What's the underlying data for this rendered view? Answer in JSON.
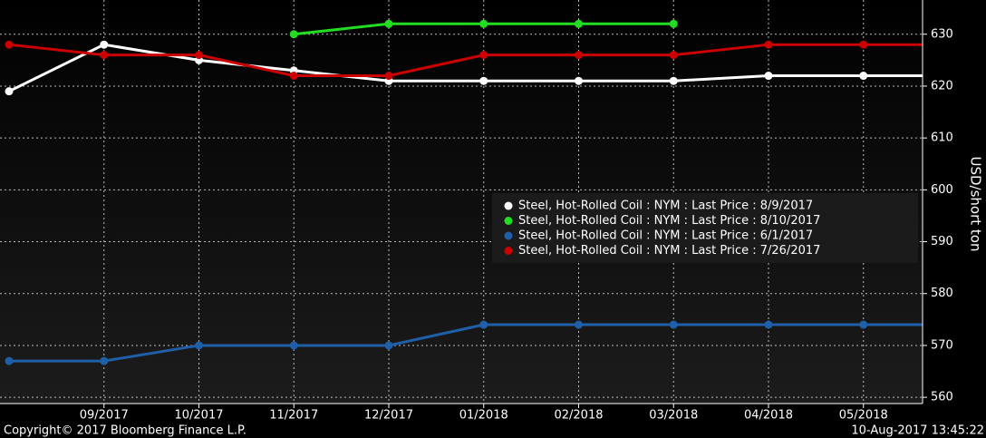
{
  "chart_data": {
    "type": "line",
    "y_label": "USD/short ton",
    "categories": [
      null,
      "09/2017",
      "10/2017",
      "11/2017",
      "12/2017",
      "01/2018",
      "02/2018",
      "03/2018",
      "04/2018",
      "05/2018",
      null
    ],
    "series": [
      {
        "name": "Steel, Hot-Rolled Coil : NYM : Last Price : 8/9/2017",
        "color": "#ffffff",
        "values": [
          619,
          628,
          625,
          623,
          621,
          621,
          621,
          621,
          622,
          622,
          622
        ]
      },
      {
        "name": "Steel, Hot-Rolled Coil : NYM : Last Price : 8/10/2017",
        "color": "#22dd22",
        "values": [
          null,
          null,
          null,
          630,
          632,
          632,
          632,
          632,
          null,
          null,
          null
        ]
      },
      {
        "name": "Steel, Hot-Rolled Coil : NYM : Last Price : 6/1/2017",
        "color": "#1f5fa8",
        "values": [
          567,
          567,
          570,
          570,
          570,
          574,
          574,
          574,
          574,
          574,
          574
        ]
      },
      {
        "name": "Steel, Hot-Rolled Coil : NYM : Last Price : 7/26/2017",
        "color": "#cc0000",
        "values": [
          628,
          626,
          626,
          622,
          622,
          626,
          626,
          626,
          628,
          628,
          628
        ]
      }
    ],
    "ylim": [
      558.8,
      636.6
    ],
    "yticks": [
      560,
      570,
      580,
      590,
      600,
      610,
      620,
      630
    ],
    "grid": true,
    "legend": "right",
    "footer_left": "Copyright© 2017 Bloomberg Finance L.P.",
    "footer_right": "10-Aug-2017 13:45:22"
  }
}
